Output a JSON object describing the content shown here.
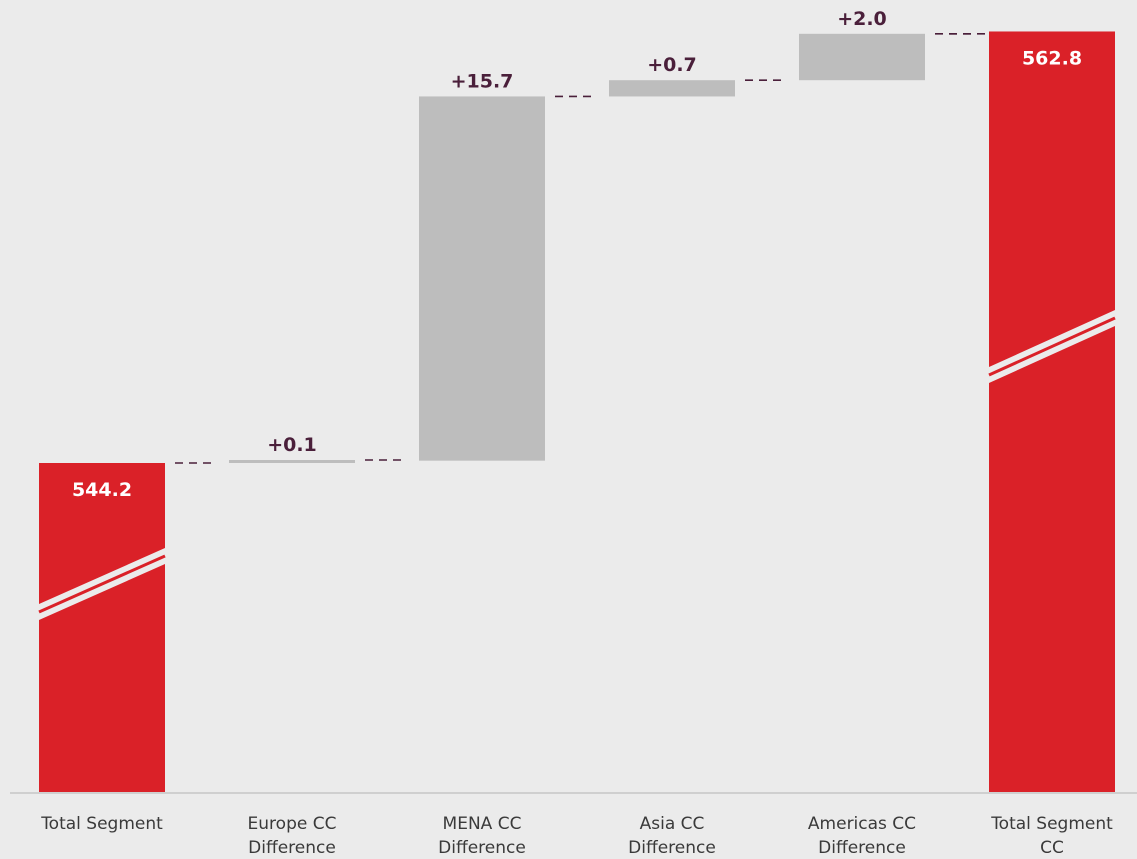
{
  "chart_data": {
    "type": "bar",
    "subtype": "waterfall",
    "title": "",
    "xlabel": "",
    "ylabel": "",
    "axis_break": true,
    "grid": false,
    "legend": "none",
    "categories": [
      [
        "Total Segment"
      ],
      [
        "Europe CC",
        "Difference"
      ],
      [
        "MENA CC",
        "Difference"
      ],
      [
        "Asia CC",
        "Difference"
      ],
      [
        "Americas CC",
        "Difference"
      ],
      [
        "Total Segment",
        "CC"
      ]
    ],
    "bars": [
      {
        "kind": "total",
        "value": 544.2,
        "label": "544.2"
      },
      {
        "kind": "delta",
        "value": 0.1,
        "label": "+0.1"
      },
      {
        "kind": "delta",
        "value": 15.7,
        "label": "+15.7"
      },
      {
        "kind": "delta",
        "value": 0.7,
        "label": "+0.7"
      },
      {
        "kind": "delta",
        "value": 2.0,
        "label": "+2.0"
      },
      {
        "kind": "total",
        "value": 562.8,
        "label": "562.8"
      }
    ],
    "colors": {
      "total": "#da2128",
      "delta": "#bdbdbd",
      "delta_label": "#4a1f3a",
      "total_label": "#ffffff",
      "connector": "#4a1f3a",
      "axis": "#cfcfcf"
    }
  }
}
